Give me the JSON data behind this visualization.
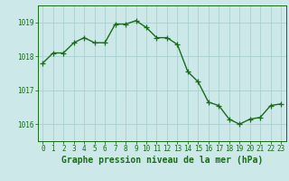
{
  "hours": [
    0,
    1,
    2,
    3,
    4,
    5,
    6,
    7,
    8,
    9,
    10,
    11,
    12,
    13,
    14,
    15,
    16,
    17,
    18,
    19,
    20,
    21,
    22,
    23
  ],
  "pressure": [
    1017.8,
    1018.1,
    1018.1,
    1018.4,
    1018.55,
    1018.4,
    1018.4,
    1018.95,
    1018.95,
    1019.05,
    1018.85,
    1018.55,
    1018.55,
    1018.35,
    1017.55,
    1017.25,
    1016.65,
    1016.55,
    1016.15,
    1016.0,
    1016.15,
    1016.2,
    1016.55,
    1016.6
  ],
  "line_color": "#1a6b1a",
  "marker": "+",
  "markersize": 4,
  "linewidth": 1.0,
  "bg_color": "#cce8e8",
  "grid_color": "#aacfcf",
  "axis_color": "#1a6b1a",
  "ylabel_ticks": [
    1016,
    1017,
    1018,
    1019
  ],
  "xlabel_ticks": [
    0,
    1,
    2,
    3,
    4,
    5,
    6,
    7,
    8,
    9,
    10,
    11,
    12,
    13,
    14,
    15,
    16,
    17,
    18,
    19,
    20,
    21,
    22,
    23
  ],
  "xlabel": "Graphe pression niveau de la mer (hPa)",
  "ylim": [
    1015.5,
    1019.5
  ],
  "xlim": [
    -0.5,
    23.5
  ],
  "tick_fontsize": 5.5,
  "label_fontsize": 7
}
